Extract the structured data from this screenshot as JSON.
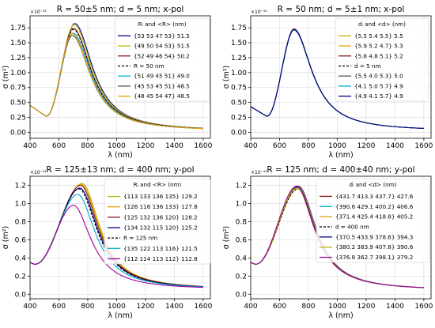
{
  "chart_data": [
    {
      "type": "line",
      "title": "R = 50±5 nm; d = 5 nm; x-pol",
      "xlabel": "λ (nm)",
      "ylabel": "σ (m²)",
      "multiplier": "×10⁻¹³",
      "xlim": [
        400,
        1650
      ],
      "ylim": [
        -0.1,
        1.95
      ],
      "xticks": [
        "400",
        "600",
        "800",
        "1000",
        "1200",
        "1400",
        "1600"
      ],
      "yticks": [
        "0.00",
        "0.25",
        "0.50",
        "0.75",
        "1.00",
        "1.25",
        "1.50",
        "1.75"
      ],
      "legend_title": "Rᵢ and <R> (nm)",
      "legend_position": "top-right",
      "grid": true,
      "curve": {
        "y400": 0.45,
        "min_x": 510,
        "min_y": 0.27,
        "tail_y": 0.02
      },
      "series": [
        {
          "name": "{53  53  47  53} 51.5",
          "color": "#00008b",
          "peak_x": 710,
          "peak_y": 1.82
        },
        {
          "name": "{49  50  54  53} 51.5",
          "color": "#b8b800",
          "peak_x": 705,
          "peak_y": 1.8
        },
        {
          "name": "{52  49  46  54} 50.2",
          "color": "#8b1a1a",
          "peak_x": 700,
          "peak_y": 1.74
        },
        {
          "name": "R = 50 nm",
          "color": "#000000",
          "dashed": true,
          "peak_x": 700,
          "peak_y": 1.72
        },
        {
          "name": "{51  49  45  51} 49.0",
          "color": "#00aacc",
          "peak_x": 698,
          "peak_y": 1.66
        },
        {
          "name": "{45  53  45  51} 48.5",
          "color": "#555555",
          "peak_x": 693,
          "peak_y": 1.62
        },
        {
          "name": "{48  45  54  47} 48.5",
          "color": "#e8a000",
          "peak_x": 692,
          "peak_y": 1.65
        }
      ]
    },
    {
      "type": "line",
      "title": "R = 50 nm; d = 5±1 nm; x-pol",
      "xlabel": "λ (nm)",
      "ylabel": "σ (m²)",
      "multiplier": "×10⁻¹³",
      "xlim": [
        400,
        1650
      ],
      "ylim": [
        -0.1,
        1.95
      ],
      "xticks": [
        "400",
        "600",
        "800",
        "1000",
        "1200",
        "1400",
        "1600"
      ],
      "yticks": [
        "0.00",
        "0.25",
        "0.50",
        "0.75",
        "1.00",
        "1.25",
        "1.50",
        "1.75"
      ],
      "legend_title": "dᵢ and <d> (nm)",
      "legend_position": "top-right",
      "grid": true,
      "curve": {
        "y400": 0.43,
        "min_x": 510,
        "min_y": 0.27,
        "tail_y": 0.02
      },
      "series": [
        {
          "name": "{5.5  5.4  5.5} 5.5",
          "color": "#b8b800",
          "peak_x": 700,
          "peak_y": 1.73
        },
        {
          "name": "{5.9  5.2  4.7} 5.3",
          "color": "#e8a000",
          "peak_x": 700,
          "peak_y": 1.72
        },
        {
          "name": "{5.8  4.8  5.1} 5.2",
          "color": "#8b1a1a",
          "peak_x": 700,
          "peak_y": 1.73
        },
        {
          "name": "d = 5 nm",
          "color": "#000000",
          "dashed": true,
          "peak_x": 700,
          "peak_y": 1.72
        },
        {
          "name": "{5.5  4.0  5.3} 5.0",
          "color": "#555555",
          "peak_x": 700,
          "peak_y": 1.72
        },
        {
          "name": "{4.1  5.0  5.7} 4.9",
          "color": "#00aacc",
          "peak_x": 700,
          "peak_y": 1.71
        },
        {
          "name": "{4.9  4.1  5.7} 4.9",
          "color": "#00008b",
          "peak_x": 700,
          "peak_y": 1.72
        }
      ]
    },
    {
      "type": "line",
      "title": "R = 125±13 nm; d = 400 nm; y-pol",
      "xlabel": "λ (nm)",
      "ylabel": "σ (m²)",
      "multiplier": "×10⁻¹²",
      "xlim": [
        400,
        1650
      ],
      "ylim": [
        -0.05,
        1.3
      ],
      "xticks": [
        "400",
        "600",
        "800",
        "1000",
        "1200",
        "1400",
        "1600"
      ],
      "yticks": [
        "0.0",
        "0.2",
        "0.4",
        "0.6",
        "0.8",
        "1.0",
        "1.2"
      ],
      "legend_title": "Rᵢ and <R> (nm)",
      "legend_position": "top-right",
      "grid": true,
      "curve": {
        "y400": 0.35,
        "min_x": 430,
        "min_y": 0.33,
        "tail_y": 0.05
      },
      "series": [
        {
          "name": "{113  133  136  135} 129.2",
          "color": "#b8b800",
          "peak_x": 760,
          "peak_y": 1.22
        },
        {
          "name": "{126  116  136  133} 127.8",
          "color": "#e8a000",
          "peak_x": 755,
          "peak_y": 1.21
        },
        {
          "name": "{125  132  136  120} 128.2",
          "color": "#8b1a1a",
          "peak_x": 750,
          "peak_y": 1.2
        },
        {
          "name": "{134  132  115  120} 125.2",
          "color": "#00008b",
          "peak_x": 745,
          "peak_y": 1.17
        },
        {
          "name": "R = 125 nm",
          "color": "#000000",
          "dashed": true,
          "peak_x": 740,
          "peak_y": 1.16
        },
        {
          "name": "{135  122  113  116} 121.5",
          "color": "#00aacc",
          "peak_x": 730,
          "peak_y": 1.1
        },
        {
          "name": "{112  114  113  112} 112.8",
          "color": "#a000a0",
          "peak_x": 700,
          "peak_y": 0.98
        }
      ]
    },
    {
      "type": "line",
      "title": "R = 125 nm; d = 400±40 nm; y-pol",
      "xlabel": "λ (nm)",
      "ylabel": "σ (m²)",
      "multiplier": "×10⁻¹²",
      "xlim": [
        400,
        1650
      ],
      "ylim": [
        -0.05,
        1.3
      ],
      "xticks": [
        "400",
        "600",
        "800",
        "1000",
        "1200",
        "1400",
        "1600"
      ],
      "yticks": [
        "0.0",
        "0.2",
        "0.4",
        "0.6",
        "0.8",
        "1.0",
        "1.2"
      ],
      "legend_title": "dᵢ and <d> (nm)",
      "legend_position": "top-right",
      "grid": true,
      "curve": {
        "y400": 0.35,
        "min_x": 430,
        "min_y": 0.33,
        "tail_y": 0.04
      },
      "series": [
        {
          "name": "{431.7  413.3  437.7} 427.6",
          "color": "#8b1a1a",
          "peak_x": 730,
          "peak_y": 1.19
        },
        {
          "name": "{390.6  429.1  400.2} 406.6",
          "color": "#00aacc",
          "peak_x": 728,
          "peak_y": 1.18
        },
        {
          "name": "{371.4  425.4  418.8} 405.2",
          "color": "#e8a000",
          "peak_x": 727,
          "peak_y": 1.17
        },
        {
          "name": "d = 400 nm",
          "color": "#000000",
          "dashed": true,
          "peak_x": 725,
          "peak_y": 1.16
        },
        {
          "name": "{370.5  433.9  378.6} 394.3",
          "color": "#00008b",
          "peak_x": 722,
          "peak_y": 1.18
        },
        {
          "name": "{380.2  383.9  407.8} 390.6",
          "color": "#b8b800",
          "peak_x": 720,
          "peak_y": 1.17
        },
        {
          "name": "{376.8  362.7  398.1} 379.2",
          "color": "#a000a0",
          "peak_x": 718,
          "peak_y": 1.19
        }
      ]
    }
  ]
}
